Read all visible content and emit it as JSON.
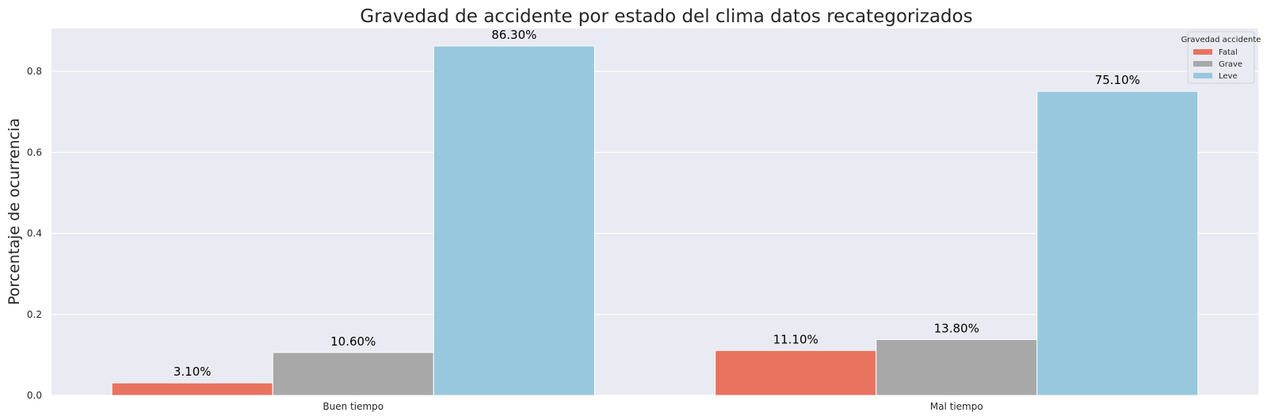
{
  "chart_data": {
    "type": "bar",
    "title": "Gravedad de accidente por estado del clima datos recategorizados",
    "ylabel": "Porcentaje de ocurrencia",
    "xlabel": "",
    "categories": [
      "Buen tiempo",
      "Mal tiempo"
    ],
    "series": [
      {
        "name": "Fatal",
        "color": "#E8735F",
        "values": [
          0.031,
          0.111
        ],
        "labels": [
          "3.10%",
          "11.10%"
        ]
      },
      {
        "name": "Grave",
        "color": "#A8A8A8",
        "values": [
          0.106,
          0.138
        ],
        "labels": [
          "10.60%",
          "13.80%"
        ]
      },
      {
        "name": "Leve",
        "color": "#97C8DE",
        "values": [
          0.863,
          0.751
        ],
        "labels": [
          "86.30%",
          "75.10%"
        ]
      }
    ],
    "ylim": [
      0,
      0.906
    ],
    "yticks": [
      0.0,
      0.2,
      0.4,
      0.6,
      0.8
    ],
    "ytick_labels": [
      "0.0",
      "0.2",
      "0.4",
      "0.6",
      "0.8"
    ],
    "grid": true,
    "legend": {
      "title": "Gravedad accidente",
      "placement": "top-right"
    }
  }
}
